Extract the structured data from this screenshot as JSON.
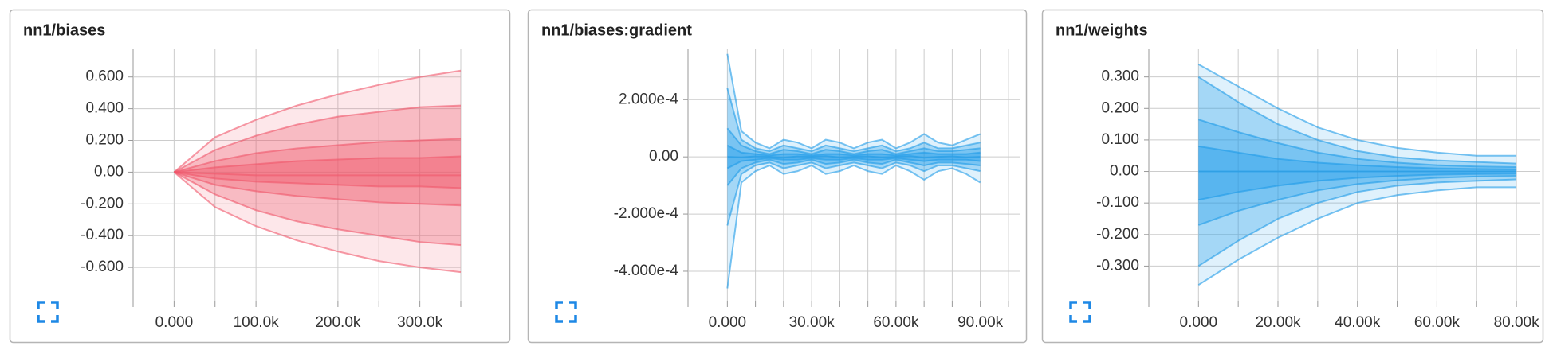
{
  "chart_data": [
    {
      "type": "distribution",
      "title": "nn1/biases",
      "color": "#f0566a",
      "grid": true,
      "x": [
        0,
        50000,
        100000,
        150000,
        200000,
        250000,
        300000,
        350000
      ],
      "series": [
        {
          "values": [
            0,
            0.22,
            0.33,
            0.42,
            0.49,
            0.55,
            0.6,
            0.64
          ]
        },
        {
          "values": [
            0,
            0.14,
            0.23,
            0.3,
            0.35,
            0.38,
            0.41,
            0.42
          ]
        },
        {
          "values": [
            0,
            0.07,
            0.12,
            0.15,
            0.17,
            0.19,
            0.2,
            0.21
          ]
        },
        {
          "values": [
            0,
            0.03,
            0.05,
            0.07,
            0.08,
            0.09,
            0.09,
            0.1
          ]
        },
        {
          "values": [
            0,
            -0.01,
            -0.02,
            -0.02,
            -0.02,
            -0.02,
            -0.02,
            -0.02
          ]
        },
        {
          "values": [
            0,
            -0.04,
            -0.06,
            -0.07,
            -0.08,
            -0.09,
            -0.09,
            -0.1
          ]
        },
        {
          "values": [
            0,
            -0.08,
            -0.12,
            -0.15,
            -0.17,
            -0.19,
            -0.2,
            -0.21
          ]
        },
        {
          "values": [
            0,
            -0.14,
            -0.24,
            -0.31,
            -0.36,
            -0.4,
            -0.44,
            -0.46
          ]
        },
        {
          "values": [
            0,
            -0.22,
            -0.34,
            -0.43,
            -0.5,
            -0.56,
            -0.6,
            -0.63
          ]
        }
      ],
      "xlim": [
        -50000,
        350000
      ],
      "xticks": [
        {
          "value": 0,
          "label": "0.000"
        },
        {
          "value": 50000,
          "label": null
        },
        {
          "value": 100000,
          "label": "100.0k"
        },
        {
          "value": 150000,
          "label": null
        },
        {
          "value": 200000,
          "label": "200.0k"
        },
        {
          "value": 250000,
          "label": null
        },
        {
          "value": 300000,
          "label": "300.0k"
        },
        {
          "value": 350000,
          "label": null
        }
      ],
      "ylim": [
        -0.81,
        0.774
      ],
      "yticks": [
        {
          "value": 0.6,
          "label": "0.600"
        },
        {
          "value": 0.4,
          "label": "0.400"
        },
        {
          "value": 0.2,
          "label": "0.200"
        },
        {
          "value": 0,
          "label": "0.00"
        },
        {
          "value": -0.2,
          "label": "-0.200"
        },
        {
          "value": -0.4,
          "label": "-0.400"
        },
        {
          "value": -0.6,
          "label": "-0.600"
        }
      ]
    },
    {
      "type": "distribution",
      "title": "nn1/biases:gradient",
      "color": "#1e9be8",
      "grid": true,
      "x": [
        0,
        5000,
        10000,
        15000,
        20000,
        25000,
        30000,
        35000,
        40000,
        45000,
        50000,
        55000,
        60000,
        65000,
        70000,
        75000,
        80000,
        85000,
        90000
      ],
      "series": [
        {
          "values": [
            0.00036,
            9e-05,
            5e-05,
            3e-05,
            6e-05,
            5e-05,
            3e-05,
            6e-05,
            5e-05,
            3e-05,
            5e-05,
            6e-05,
            3e-05,
            5e-05,
            8e-05,
            5e-05,
            4e-05,
            6e-05,
            8e-05
          ]
        },
        {
          "values": [
            0.00024,
            6e-05,
            3e-05,
            2e-05,
            4e-05,
            3e-05,
            2e-05,
            4e-05,
            3e-05,
            2e-05,
            3e-05,
            4e-05,
            2e-05,
            3e-05,
            5e-05,
            3e-05,
            3e-05,
            4e-05,
            5e-05
          ]
        },
        {
          "values": [
            0.0001,
            4e-05,
            2e-05,
            1e-05,
            2.5e-05,
            2e-05,
            1e-05,
            2.5e-05,
            2e-05,
            1e-05,
            2e-05,
            2.5e-05,
            1e-05,
            2e-05,
            3e-05,
            2e-05,
            2e-05,
            2.5e-05,
            3e-05
          ]
        },
        {
          "values": [
            4e-05,
            1.5e-05,
            1e-05,
            5e-06,
            1e-05,
            1e-05,
            5e-06,
            1e-05,
            1e-05,
            5e-06,
            1e-05,
            1e-05,
            5e-06,
            1e-05,
            1.5e-05,
            1e-05,
            1e-05,
            1e-05,
            1.5e-05
          ]
        },
        {
          "values": [
            0,
            -2e-06,
            2e-06,
            0,
            -3e-06,
            2e-06,
            0,
            3e-06,
            -2e-06,
            0,
            2e-06,
            -2e-06,
            0,
            3e-06,
            -3e-06,
            0,
            2e-06,
            -2e-06,
            0
          ]
        },
        {
          "values": [
            -4e-05,
            -1.5e-05,
            -1e-05,
            -5e-06,
            -1e-05,
            -1e-05,
            -5e-06,
            -1e-05,
            -1e-05,
            -5e-06,
            -1e-05,
            -1e-05,
            -5e-06,
            -1e-05,
            -1.5e-05,
            -1e-05,
            -1e-05,
            -1e-05,
            -1.5e-05
          ]
        },
        {
          "values": [
            -0.0001,
            -4e-05,
            -2e-05,
            -1e-05,
            -2.5e-05,
            -2e-05,
            -1e-05,
            -2.5e-05,
            -2e-05,
            -1e-05,
            -2e-05,
            -2.5e-05,
            -1e-05,
            -2e-05,
            -3e-05,
            -2e-05,
            -2e-05,
            -2.5e-05,
            -3e-05
          ]
        },
        {
          "values": [
            -0.00024,
            -6e-05,
            -3e-05,
            -2e-05,
            -4e-05,
            -3e-05,
            -2e-05,
            -4e-05,
            -3e-05,
            -2e-05,
            -3e-05,
            -4e-05,
            -2e-05,
            -3e-05,
            -5e-05,
            -3e-05,
            -3e-05,
            -4e-05,
            -5e-05
          ]
        },
        {
          "values": [
            -0.00046,
            -9e-05,
            -5e-05,
            -3e-05,
            -6e-05,
            -5e-05,
            -3e-05,
            -6e-05,
            -5e-05,
            -3e-05,
            -5e-05,
            -6e-05,
            -3e-05,
            -5e-05,
            -8e-05,
            -5e-05,
            -4e-05,
            -6e-05,
            -9e-05
          ]
        }
      ],
      "xlim": [
        -14000,
        104000
      ],
      "xticks": [
        {
          "value": 0,
          "label": "0.000"
        },
        {
          "value": 10000,
          "label": null
        },
        {
          "value": 20000,
          "label": null
        },
        {
          "value": 30000,
          "label": "30.00k"
        },
        {
          "value": 40000,
          "label": null
        },
        {
          "value": 50000,
          "label": null
        },
        {
          "value": 60000,
          "label": "60.00k"
        },
        {
          "value": 70000,
          "label": null
        },
        {
          "value": 80000,
          "label": null
        },
        {
          "value": 90000,
          "label": "90.00k"
        },
        {
          "value": 100000,
          "label": null
        }
      ],
      "ylim": [
        -0.000503,
        0.000376
      ],
      "yticks": [
        {
          "value": 0.0002,
          "label": "2.000e-4"
        },
        {
          "value": 0,
          "label": "0.00"
        },
        {
          "value": -0.0002,
          "label": "-2.000e-4"
        },
        {
          "value": -0.0004,
          "label": "-4.000e-4"
        }
      ]
    },
    {
      "type": "distribution",
      "title": "nn1/weights",
      "color": "#1e9be8",
      "grid": true,
      "x": [
        0,
        10000,
        20000,
        30000,
        40000,
        50000,
        60000,
        70000,
        80000
      ],
      "series": [
        {
          "values": [
            0.34,
            0.27,
            0.2,
            0.14,
            0.1,
            0.075,
            0.06,
            0.05,
            0.05
          ]
        },
        {
          "values": [
            0.3,
            0.22,
            0.15,
            0.1,
            0.065,
            0.045,
            0.035,
            0.03,
            0.025
          ]
        },
        {
          "values": [
            0.165,
            0.125,
            0.09,
            0.06,
            0.04,
            0.028,
            0.02,
            0.016,
            0.014
          ]
        },
        {
          "values": [
            0.08,
            0.06,
            0.04,
            0.028,
            0.02,
            0.014,
            0.01,
            0.008,
            0.007
          ]
        },
        {
          "values": [
            0,
            0,
            0,
            0,
            0,
            0,
            0,
            0,
            0
          ]
        },
        {
          "values": [
            -0.09,
            -0.065,
            -0.045,
            -0.03,
            -0.02,
            -0.014,
            -0.01,
            -0.008,
            -0.007
          ]
        },
        {
          "values": [
            -0.17,
            -0.125,
            -0.09,
            -0.06,
            -0.04,
            -0.028,
            -0.02,
            -0.016,
            -0.014
          ]
        },
        {
          "values": [
            -0.3,
            -0.22,
            -0.15,
            -0.1,
            -0.065,
            -0.045,
            -0.035,
            -0.03,
            -0.025
          ]
        },
        {
          "values": [
            -0.36,
            -0.28,
            -0.21,
            -0.15,
            -0.1,
            -0.075,
            -0.06,
            -0.05,
            -0.05
          ]
        }
      ],
      "xlim": [
        -12500,
        86000
      ],
      "xticks": [
        {
          "value": 0,
          "label": "0.000"
        },
        {
          "value": 10000,
          "label": null
        },
        {
          "value": 20000,
          "label": "20.00k"
        },
        {
          "value": 30000,
          "label": null
        },
        {
          "value": 40000,
          "label": "40.00k"
        },
        {
          "value": 50000,
          "label": null
        },
        {
          "value": 60000,
          "label": "60.00k"
        },
        {
          "value": 70000,
          "label": null
        },
        {
          "value": 80000,
          "label": "80.00k"
        }
      ],
      "ylim": [
        -0.41,
        0.3875
      ],
      "yticks": [
        {
          "value": 0.3,
          "label": "0.300"
        },
        {
          "value": 0.2,
          "label": "0.200"
        },
        {
          "value": 0.1,
          "label": "0.100"
        },
        {
          "value": 0,
          "label": "0.00"
        },
        {
          "value": -0.1,
          "label": "-0.100"
        },
        {
          "value": -0.2,
          "label": "-0.200"
        },
        {
          "value": -0.3,
          "label": "-0.300"
        }
      ]
    }
  ]
}
